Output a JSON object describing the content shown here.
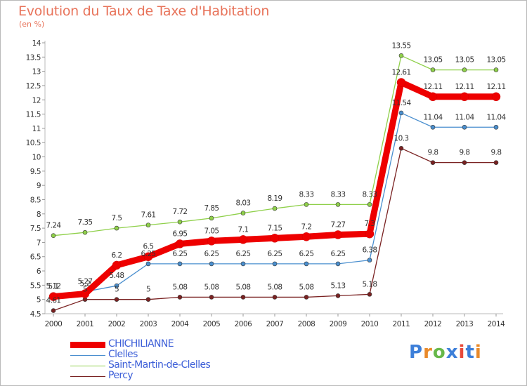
{
  "title": "Evolution du Taux de Taxe d'Habitation",
  "unit_label": "(en %)",
  "logo": {
    "letters": [
      "P",
      "r",
      "o",
      "x",
      "i",
      "t",
      "i"
    ],
    "colors": [
      "#3d7fd9",
      "#e98a2a",
      "#67b84a",
      "#3d7fd9",
      "#e84a3a",
      "#3d7fd9",
      "#e98a2a"
    ]
  },
  "chart_data": {
    "type": "line",
    "title": "Evolution du Taux de Taxe d'Habitation",
    "ylabel": "(en %)",
    "xlabel": "",
    "x": [
      "2000",
      "2001",
      "2002",
      "2003",
      "2004",
      "2005",
      "2006",
      "2007",
      "2008",
      "2009",
      "2010",
      "2011",
      "2012",
      "2013",
      "2014"
    ],
    "ylim": [
      4.5,
      14
    ],
    "yticks": [
      "4.5",
      "5",
      "5.5",
      "6",
      "6.5",
      "7",
      "7.5",
      "8",
      "8.5",
      "9",
      "9.5",
      "10",
      "10.5",
      "11",
      "11.5",
      "12",
      "12.5",
      "13",
      "13.5",
      "14"
    ],
    "grid": false,
    "legend_position": "bottom-left",
    "series": [
      {
        "name": "CHICHILIANNE",
        "color": "#ee0000",
        "values": [
          5.1,
          5.2,
          6.2,
          6.5,
          6.95,
          7.05,
          7.1,
          7.15,
          7.2,
          7.27,
          7.3,
          12.61,
          12.11,
          12.11,
          12.11
        ],
        "labels": [
          "5.1",
          "5.2",
          "6.2",
          "6.5",
          "6.95",
          "7.05",
          "7.1",
          "7.15",
          "7.2",
          "7.27",
          "7.3",
          "12.61",
          "12.11",
          "12.11",
          "12.11"
        ]
      },
      {
        "name": "Clelles",
        "color": "#4a8fcf",
        "values": [
          5.12,
          5.27,
          5.48,
          6.25,
          6.25,
          6.25,
          6.25,
          6.25,
          6.25,
          6.25,
          6.38,
          11.54,
          11.04,
          11.04,
          11.04
        ],
        "labels": [
          "5.12",
          "5.27",
          "5.48",
          "6.25",
          "6.25",
          "6.25",
          "6.25",
          "6.25",
          "6.25",
          "6.25",
          "6.38",
          "11.54",
          "11.04",
          "11.04",
          "11.04"
        ]
      },
      {
        "name": "Saint-Martin-de-Clelles",
        "color": "#8fd04a",
        "values": [
          7.24,
          7.35,
          7.5,
          7.61,
          7.72,
          7.85,
          8.03,
          8.19,
          8.33,
          8.33,
          8.33,
          13.55,
          13.05,
          13.05,
          13.05
        ],
        "labels": [
          "7.24",
          "7.35",
          "7.5",
          "7.61",
          "7.72",
          "7.85",
          "8.03",
          "8.19",
          "8.33",
          "8.33",
          "8.33",
          "13.55",
          "13.05",
          "13.05",
          "13.05"
        ]
      },
      {
        "name": "Percy",
        "color": "#7a2222",
        "values": [
          4.61,
          5,
          5,
          5,
          5.08,
          5.08,
          5.08,
          5.08,
          5.08,
          5.13,
          5.18,
          10.3,
          9.8,
          9.8,
          9.8
        ],
        "labels": [
          "4.61",
          "5",
          "5",
          "5",
          "5.08",
          "5.08",
          "5.08",
          "5.08",
          "5.08",
          "5.13",
          "5.18",
          "10.3",
          "9.8",
          "9.8",
          "9.8"
        ]
      }
    ]
  }
}
